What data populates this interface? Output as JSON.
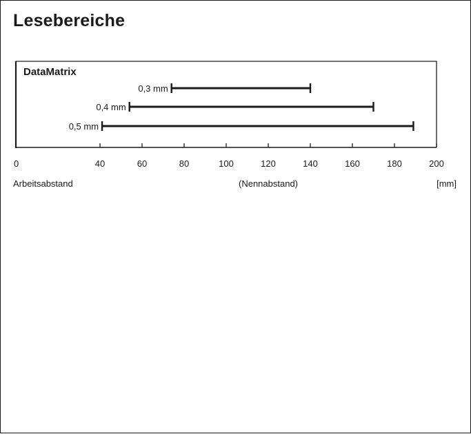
{
  "page": {
    "title": "Lesebereiche"
  },
  "chart_data": {
    "type": "range-bar",
    "panel_title": "DataMatrix",
    "series": [
      {
        "label": "0,3 mm",
        "start": 74,
        "end": 140
      },
      {
        "label": "0,4 mm",
        "start": 54,
        "end": 170
      },
      {
        "label": "0,5 mm",
        "start": 41,
        "end": 189
      }
    ],
    "x_ticks": [
      0,
      40,
      60,
      80,
      100,
      120,
      140,
      160,
      180,
      200
    ],
    "xlim": [
      0,
      200
    ],
    "x_left_label": "Arbeitsabstand",
    "x_center_label": "(Nennabstand)",
    "x_unit": "[mm]",
    "grid": false,
    "bar_color": "#1a1a1a"
  }
}
